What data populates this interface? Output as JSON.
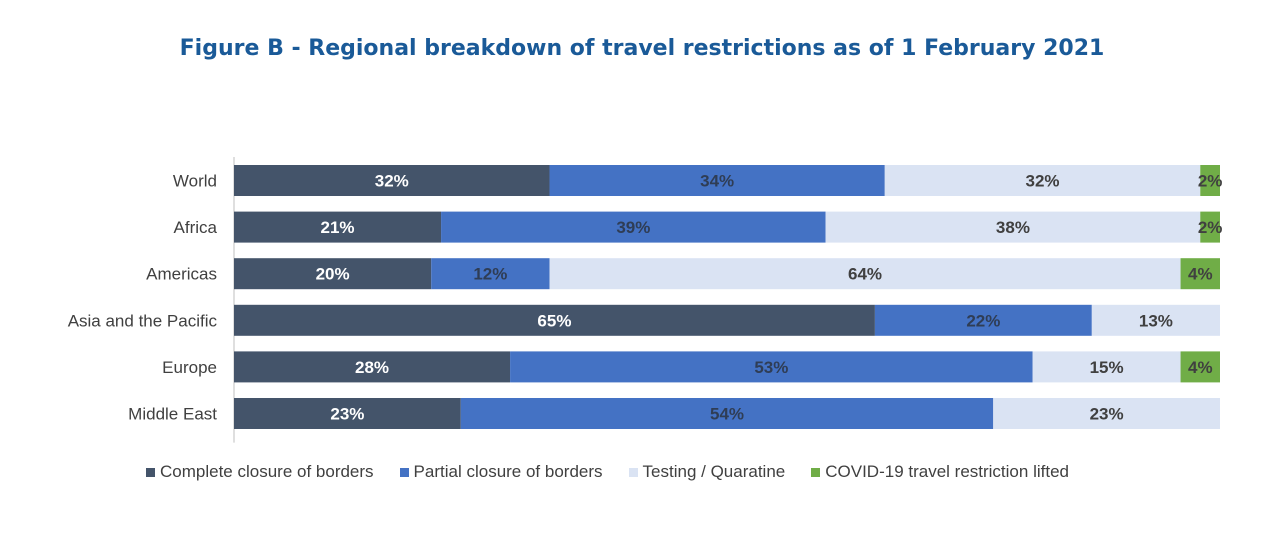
{
  "title": "Figure B - Regional breakdown of travel restrictions as of 1 February 2021",
  "chart_data": {
    "type": "bar",
    "orientation": "horizontal",
    "stacked": true,
    "title": "Figure B - Regional breakdown of travel restrictions as of 1 February 2021",
    "categories": [
      "World",
      "Africa",
      "Americas",
      "Asia and the Pacific",
      "Europe",
      "Middle East"
    ],
    "xlim": [
      0,
      100
    ],
    "grid": false,
    "legend_position": "bottom",
    "series": [
      {
        "name": "Complete closure of borders",
        "color": "#44546a",
        "label_color": "#ffffff",
        "values": [
          32,
          21,
          20,
          65,
          28,
          23
        ],
        "labels": [
          "32%",
          "21%",
          "20%",
          "65%",
          "28%",
          "23%"
        ]
      },
      {
        "name": "Partial closure of borders",
        "color": "#4472c4",
        "label_color": "#2f3d55",
        "values": [
          34,
          39,
          12,
          22,
          53,
          54
        ],
        "labels": [
          "34%",
          "39%",
          "12%",
          "22%",
          "53%",
          "54%"
        ]
      },
      {
        "name": "Testing / Quaratine",
        "color": "#dae3f3",
        "label_color": "#404040",
        "values": [
          32,
          38,
          64,
          13,
          15,
          23
        ],
        "labels": [
          "32%",
          "38%",
          "64%",
          "13%",
          "15%",
          "23%"
        ]
      },
      {
        "name": "COVID-19 travel restriction lifted",
        "color": "#70ad47",
        "label_color": "#404040",
        "values": [
          2,
          2,
          4,
          0,
          4,
          0
        ],
        "labels": [
          "2%",
          "2%",
          "4%",
          "",
          "4%",
          ""
        ]
      }
    ]
  }
}
